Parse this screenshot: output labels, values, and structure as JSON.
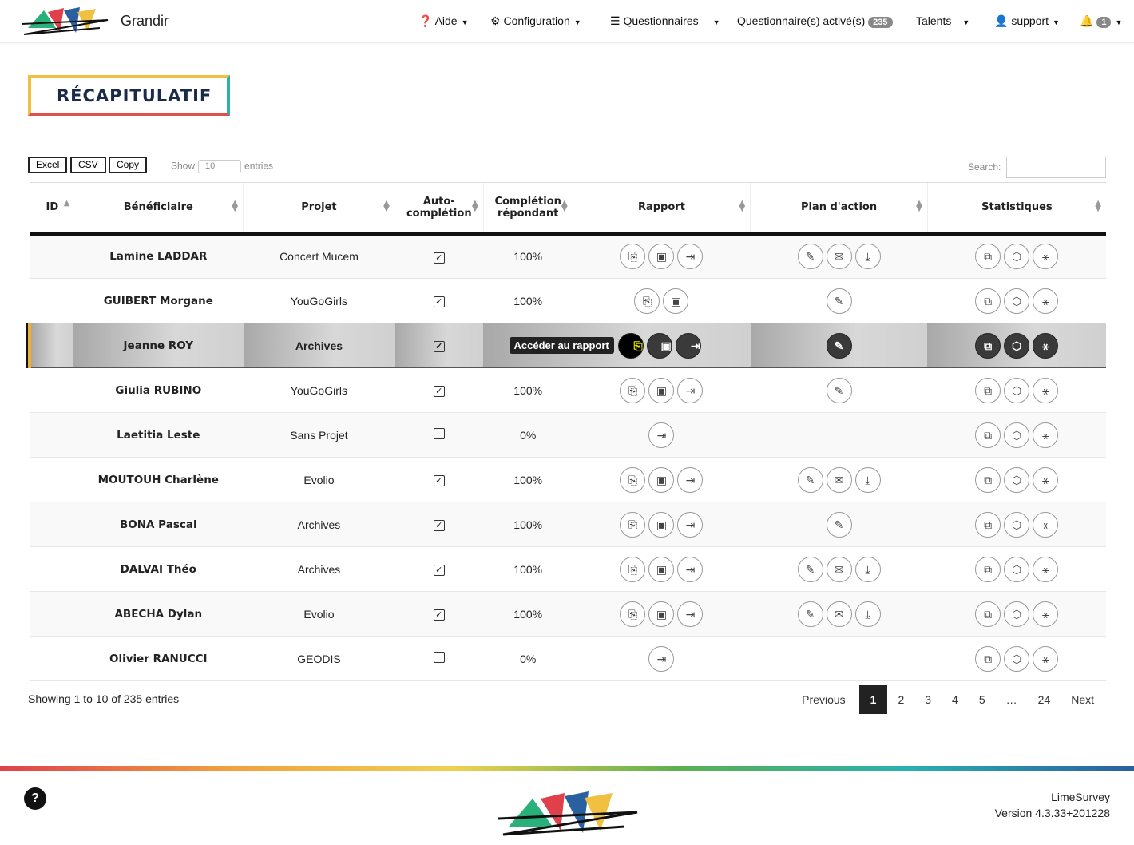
{
  "nav": {
    "brand": "Grandir",
    "items": [
      {
        "label": "Aide",
        "icon": "question-circle-icon"
      },
      {
        "label": "Configuration",
        "icon": "gears-icon"
      },
      {
        "label": "Questionnaires",
        "icon": "list-icon"
      },
      {
        "label": "Questionnaire(s) activé(s)",
        "badge": "235"
      },
      {
        "label": "Talents"
      },
      {
        "label": "support",
        "icon": "user-icon"
      },
      {
        "label": "",
        "icon": "bell-icon",
        "badge": "1"
      }
    ]
  },
  "page": {
    "title": "RÉCAPITULATIF"
  },
  "toolbar": {
    "excel": "Excel",
    "csv": "CSV",
    "copy": "Copy",
    "show": "Show",
    "length": "10",
    "entries": "entries",
    "search": "Search:"
  },
  "table": {
    "headers": [
      "ID",
      "Bénéficiaire",
      "Projet",
      "Auto-complétion",
      "Complétion répondant",
      "Rapport",
      "Plan d'action",
      "Statistiques"
    ],
    "tooltip": "Accéder au rapport",
    "rows": [
      {
        "name": "Lamine LADDAR",
        "project": "Concert Mucem",
        "auto": true,
        "completion": "100%",
        "rapport": 3,
        "plan": 3,
        "stats": 3
      },
      {
        "name": "GUIBERT Morgane",
        "project": "YouGoGirls",
        "auto": true,
        "completion": "100%",
        "rapport": 2,
        "plan": 1,
        "stats": 3
      },
      {
        "name": "Jeanne ROY",
        "project": "Archives",
        "auto": true,
        "completion": "",
        "rapport": 3,
        "plan": 1,
        "stats": 3,
        "highlight": true
      },
      {
        "name": "Giulia RUBINO",
        "project": "YouGoGirls",
        "auto": true,
        "completion": "100%",
        "rapport": 3,
        "plan": 1,
        "stats": 3
      },
      {
        "name": "Laetitia Leste",
        "project": "Sans Projet",
        "auto": false,
        "completion": "0%",
        "rapport": 1,
        "plan": 0,
        "stats": 3
      },
      {
        "name": "MOUTOUH Charlène",
        "project": "Evolio",
        "auto": true,
        "completion": "100%",
        "rapport": 3,
        "plan": 3,
        "stats": 3
      },
      {
        "name": "BONA Pascal",
        "project": "Archives",
        "auto": true,
        "completion": "100%",
        "rapport": 3,
        "plan": 1,
        "stats": 3
      },
      {
        "name": "DALVAI Théo",
        "project": "Archives",
        "auto": true,
        "completion": "100%",
        "rapport": 3,
        "plan": 3,
        "stats": 3
      },
      {
        "name": "ABECHA Dylan",
        "project": "Evolio",
        "auto": true,
        "completion": "100%",
        "rapport": 3,
        "plan": 3,
        "stats": 3
      },
      {
        "name": "Olivier RANUCCI",
        "project": "GEODIS",
        "auto": false,
        "completion": "0%",
        "rapport": 1,
        "plan": 0,
        "stats": 3
      }
    ]
  },
  "footer": {
    "info": "Showing 1 to 10 of 235 entries",
    "pages": [
      "Previous",
      "1",
      "2",
      "3",
      "4",
      "5",
      "…",
      "24",
      "Next"
    ],
    "current": "1",
    "app": "LimeSurvey",
    "version": "Version 4.3.33+201228"
  }
}
